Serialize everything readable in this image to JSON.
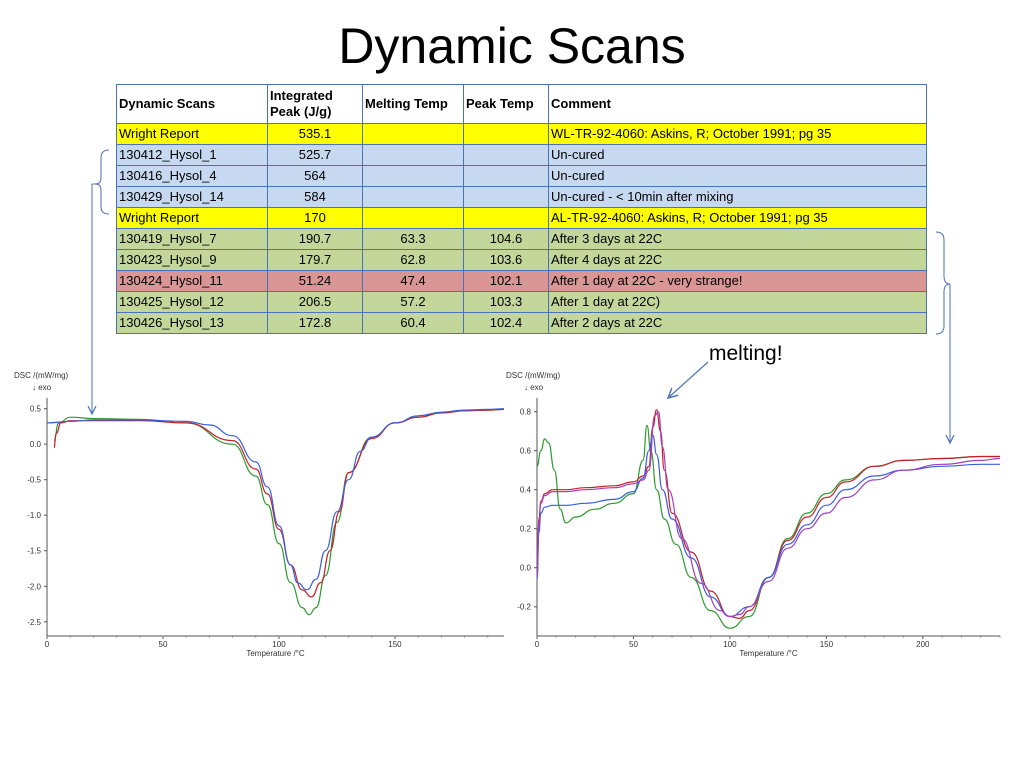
{
  "title": "Dynamic Scans",
  "table": {
    "headers": [
      "Dynamic Scans",
      "Integrated Peak (J/g)",
      "Melting Temp",
      "Peak Temp",
      "Comment"
    ],
    "rows": [
      {
        "kind": "wright",
        "cells": [
          "Wright Report",
          "535.1",
          "",
          "",
          "WL-TR-92-4060: Askins, R; October 1991; pg 35"
        ]
      },
      {
        "kind": "blue",
        "cells": [
          "130412_Hysol_1",
          "525.7",
          "",
          "",
          "Un-cured"
        ]
      },
      {
        "kind": "blue",
        "cells": [
          "130416_Hysol_4",
          "564",
          "",
          "",
          "Un-cured"
        ]
      },
      {
        "kind": "blue",
        "cells": [
          "130429_Hysol_14",
          "584",
          "",
          "",
          "Un-cured - < 10min after mixing"
        ]
      },
      {
        "kind": "wright",
        "cells": [
          "Wright Report",
          "170",
          "",
          "",
          "AL-TR-92-4060: Askins, R; October 1991; pg 35"
        ]
      },
      {
        "kind": "green",
        "cells": [
          "130419_Hysol_7",
          "190.7",
          "63.3",
          "104.6",
          "After 3 days at 22C"
        ]
      },
      {
        "kind": "green",
        "cells": [
          "130423_Hysol_9",
          "179.7",
          "62.8",
          "103.6",
          "After 4 days at 22C"
        ]
      },
      {
        "kind": "red",
        "cells": [
          "130424_Hysol_11",
          "51.24",
          "47.4",
          "102.1",
          "After 1 day at 22C - very strange!"
        ]
      },
      {
        "kind": "green",
        "cells": [
          "130425_Hysol_12",
          "206.5",
          "57.2",
          "103.3",
          "After 1 day at 22C)"
        ]
      },
      {
        "kind": "green",
        "cells": [
          "130426_Hysol_13",
          "172.8",
          "60.4",
          "102.4",
          "After 2 days at 22C"
        ]
      }
    ]
  },
  "annotation": "melting!",
  "colors": {
    "wright": "#ffff00",
    "blue_rows": "#c6d9f0",
    "green_rows": "#c4d79b",
    "red_rows": "#da9694",
    "connector": "#4a72b8"
  },
  "chart_data": [
    {
      "type": "line",
      "title": "",
      "ylabel": "DSC /(mW/mg)",
      "exo_label": "↓ exo",
      "xlabel": "Temperature /°C",
      "xlim": [
        0,
        197
      ],
      "ylim": [
        -2.7,
        0.65
      ],
      "xticks": [
        0,
        50,
        100,
        150
      ],
      "yticks": [
        0.5,
        0.0,
        -0.5,
        -1.0,
        -1.5,
        -2.0,
        -2.5
      ],
      "ytick_labels": [
        "0.5",
        "0.0",
        "-0.5",
        "-1.0",
        "-1.5",
        "-2.0",
        "-2.5"
      ],
      "series": [
        {
          "color": "#2e9a2e",
          "x": [
            3,
            5,
            10,
            20,
            40,
            60,
            80,
            90,
            95,
            100,
            105,
            110,
            113,
            116,
            120,
            125,
            130,
            140,
            150,
            160,
            170,
            180,
            190,
            197
          ],
          "y": [
            0.05,
            0.3,
            0.38,
            0.36,
            0.35,
            0.3,
            0.0,
            -0.45,
            -0.85,
            -1.4,
            -1.95,
            -2.3,
            -2.4,
            -2.3,
            -1.85,
            -1.1,
            -0.4,
            0.1,
            0.3,
            0.38,
            0.44,
            0.47,
            0.48,
            0.49
          ]
        },
        {
          "color": "#c8202c",
          "x": [
            3,
            4,
            6,
            10,
            20,
            40,
            60,
            80,
            90,
            95,
            100,
            105,
            110,
            114,
            118,
            122,
            126,
            130,
            140,
            150,
            160,
            170,
            180,
            190,
            197
          ],
          "y": [
            -0.05,
            0.15,
            0.3,
            0.33,
            0.33,
            0.33,
            0.3,
            0.05,
            -0.35,
            -0.7,
            -1.2,
            -1.7,
            -2.05,
            -2.15,
            -1.95,
            -1.5,
            -0.95,
            -0.4,
            0.08,
            0.3,
            0.38,
            0.44,
            0.47,
            0.48,
            0.49
          ]
        },
        {
          "color": "#3a5ee0",
          "x": [
            0,
            10,
            20,
            40,
            60,
            70,
            80,
            90,
            95,
            100,
            105,
            108,
            112,
            116,
            120,
            125,
            130,
            135,
            140,
            150,
            160,
            170,
            180,
            190,
            197
          ],
          "y": [
            0.3,
            0.32,
            0.34,
            0.34,
            0.32,
            0.27,
            0.12,
            -0.25,
            -0.6,
            -1.15,
            -1.7,
            -1.95,
            -2.05,
            -1.9,
            -1.5,
            -0.95,
            -0.5,
            -0.1,
            0.1,
            0.3,
            0.4,
            0.45,
            0.48,
            0.49,
            0.5
          ]
        }
      ]
    },
    {
      "type": "line",
      "title": "",
      "ylabel": "DSC /(mW/mg)",
      "exo_label": "↓ exo",
      "xlabel": "Temperature /°C",
      "xlim": [
        0,
        240
      ],
      "ylim": [
        -0.35,
        0.87
      ],
      "xticks": [
        0,
        50,
        100,
        150,
        200
      ],
      "yticks": [
        0.8,
        0.6,
        0.4,
        0.2,
        0.0,
        -0.2
      ],
      "ytick_labels": [
        "0.8",
        "0.6",
        "0.4",
        "0.2",
        "0.0",
        "-0.2"
      ],
      "series": [
        {
          "color": "#2e9a2e",
          "x": [
            0,
            2,
            4,
            6,
            9,
            12,
            15,
            20,
            30,
            40,
            50,
            55,
            57,
            59,
            62,
            66,
            72,
            80,
            90,
            100,
            110,
            120,
            130,
            140,
            150,
            160,
            175,
            190,
            210,
            230,
            240
          ],
          "y": [
            0.52,
            0.6,
            0.66,
            0.64,
            0.5,
            0.3,
            0.23,
            0.26,
            0.3,
            0.33,
            0.38,
            0.55,
            0.73,
            0.6,
            0.4,
            0.25,
            0.12,
            -0.05,
            -0.22,
            -0.31,
            -0.25,
            -0.05,
            0.15,
            0.28,
            0.38,
            0.45,
            0.52,
            0.55,
            0.56,
            0.57,
            0.57
          ]
        },
        {
          "color": "#c8202c",
          "x": [
            0,
            1,
            2,
            4,
            8,
            15,
            25,
            40,
            50,
            55,
            58,
            60,
            62,
            64,
            66,
            70,
            80,
            90,
            100,
            105,
            110,
            120,
            130,
            140,
            150,
            160,
            175,
            190,
            210,
            230,
            240
          ],
          "y": [
            -0.05,
            0.25,
            0.34,
            0.38,
            0.4,
            0.4,
            0.41,
            0.42,
            0.44,
            0.47,
            0.52,
            0.72,
            0.81,
            0.7,
            0.5,
            0.28,
            0.08,
            -0.12,
            -0.25,
            -0.26,
            -0.22,
            -0.05,
            0.14,
            0.26,
            0.36,
            0.44,
            0.52,
            0.55,
            0.56,
            0.57,
            0.57
          ]
        },
        {
          "color": "#3a5ee0",
          "x": [
            0,
            1,
            2,
            4,
            8,
            15,
            25,
            40,
            50,
            55,
            58,
            60,
            62,
            65,
            70,
            80,
            90,
            100,
            110,
            120,
            130,
            140,
            150,
            160,
            175,
            190,
            210,
            230,
            240
          ],
          "y": [
            -0.06,
            0.18,
            0.28,
            0.31,
            0.32,
            0.32,
            0.33,
            0.35,
            0.39,
            0.46,
            0.6,
            0.68,
            0.58,
            0.4,
            0.25,
            0.05,
            -0.15,
            -0.25,
            -0.2,
            -0.05,
            0.12,
            0.22,
            0.32,
            0.4,
            0.47,
            0.5,
            0.52,
            0.53,
            0.53
          ]
        },
        {
          "color": "#a040c0",
          "x": [
            0,
            1,
            2,
            4,
            8,
            15,
            25,
            40,
            50,
            55,
            58,
            61,
            63,
            65,
            68,
            75,
            85,
            95,
            100,
            105,
            110,
            120,
            130,
            140,
            150,
            160,
            175,
            190,
            210,
            230,
            240
          ],
          "y": [
            -0.05,
            0.22,
            0.33,
            0.37,
            0.39,
            0.39,
            0.4,
            0.41,
            0.43,
            0.45,
            0.5,
            0.78,
            0.8,
            0.62,
            0.4,
            0.15,
            -0.08,
            -0.22,
            -0.25,
            -0.24,
            -0.2,
            -0.07,
            0.1,
            0.2,
            0.28,
            0.36,
            0.45,
            0.5,
            0.53,
            0.55,
            0.56
          ]
        }
      ]
    }
  ]
}
